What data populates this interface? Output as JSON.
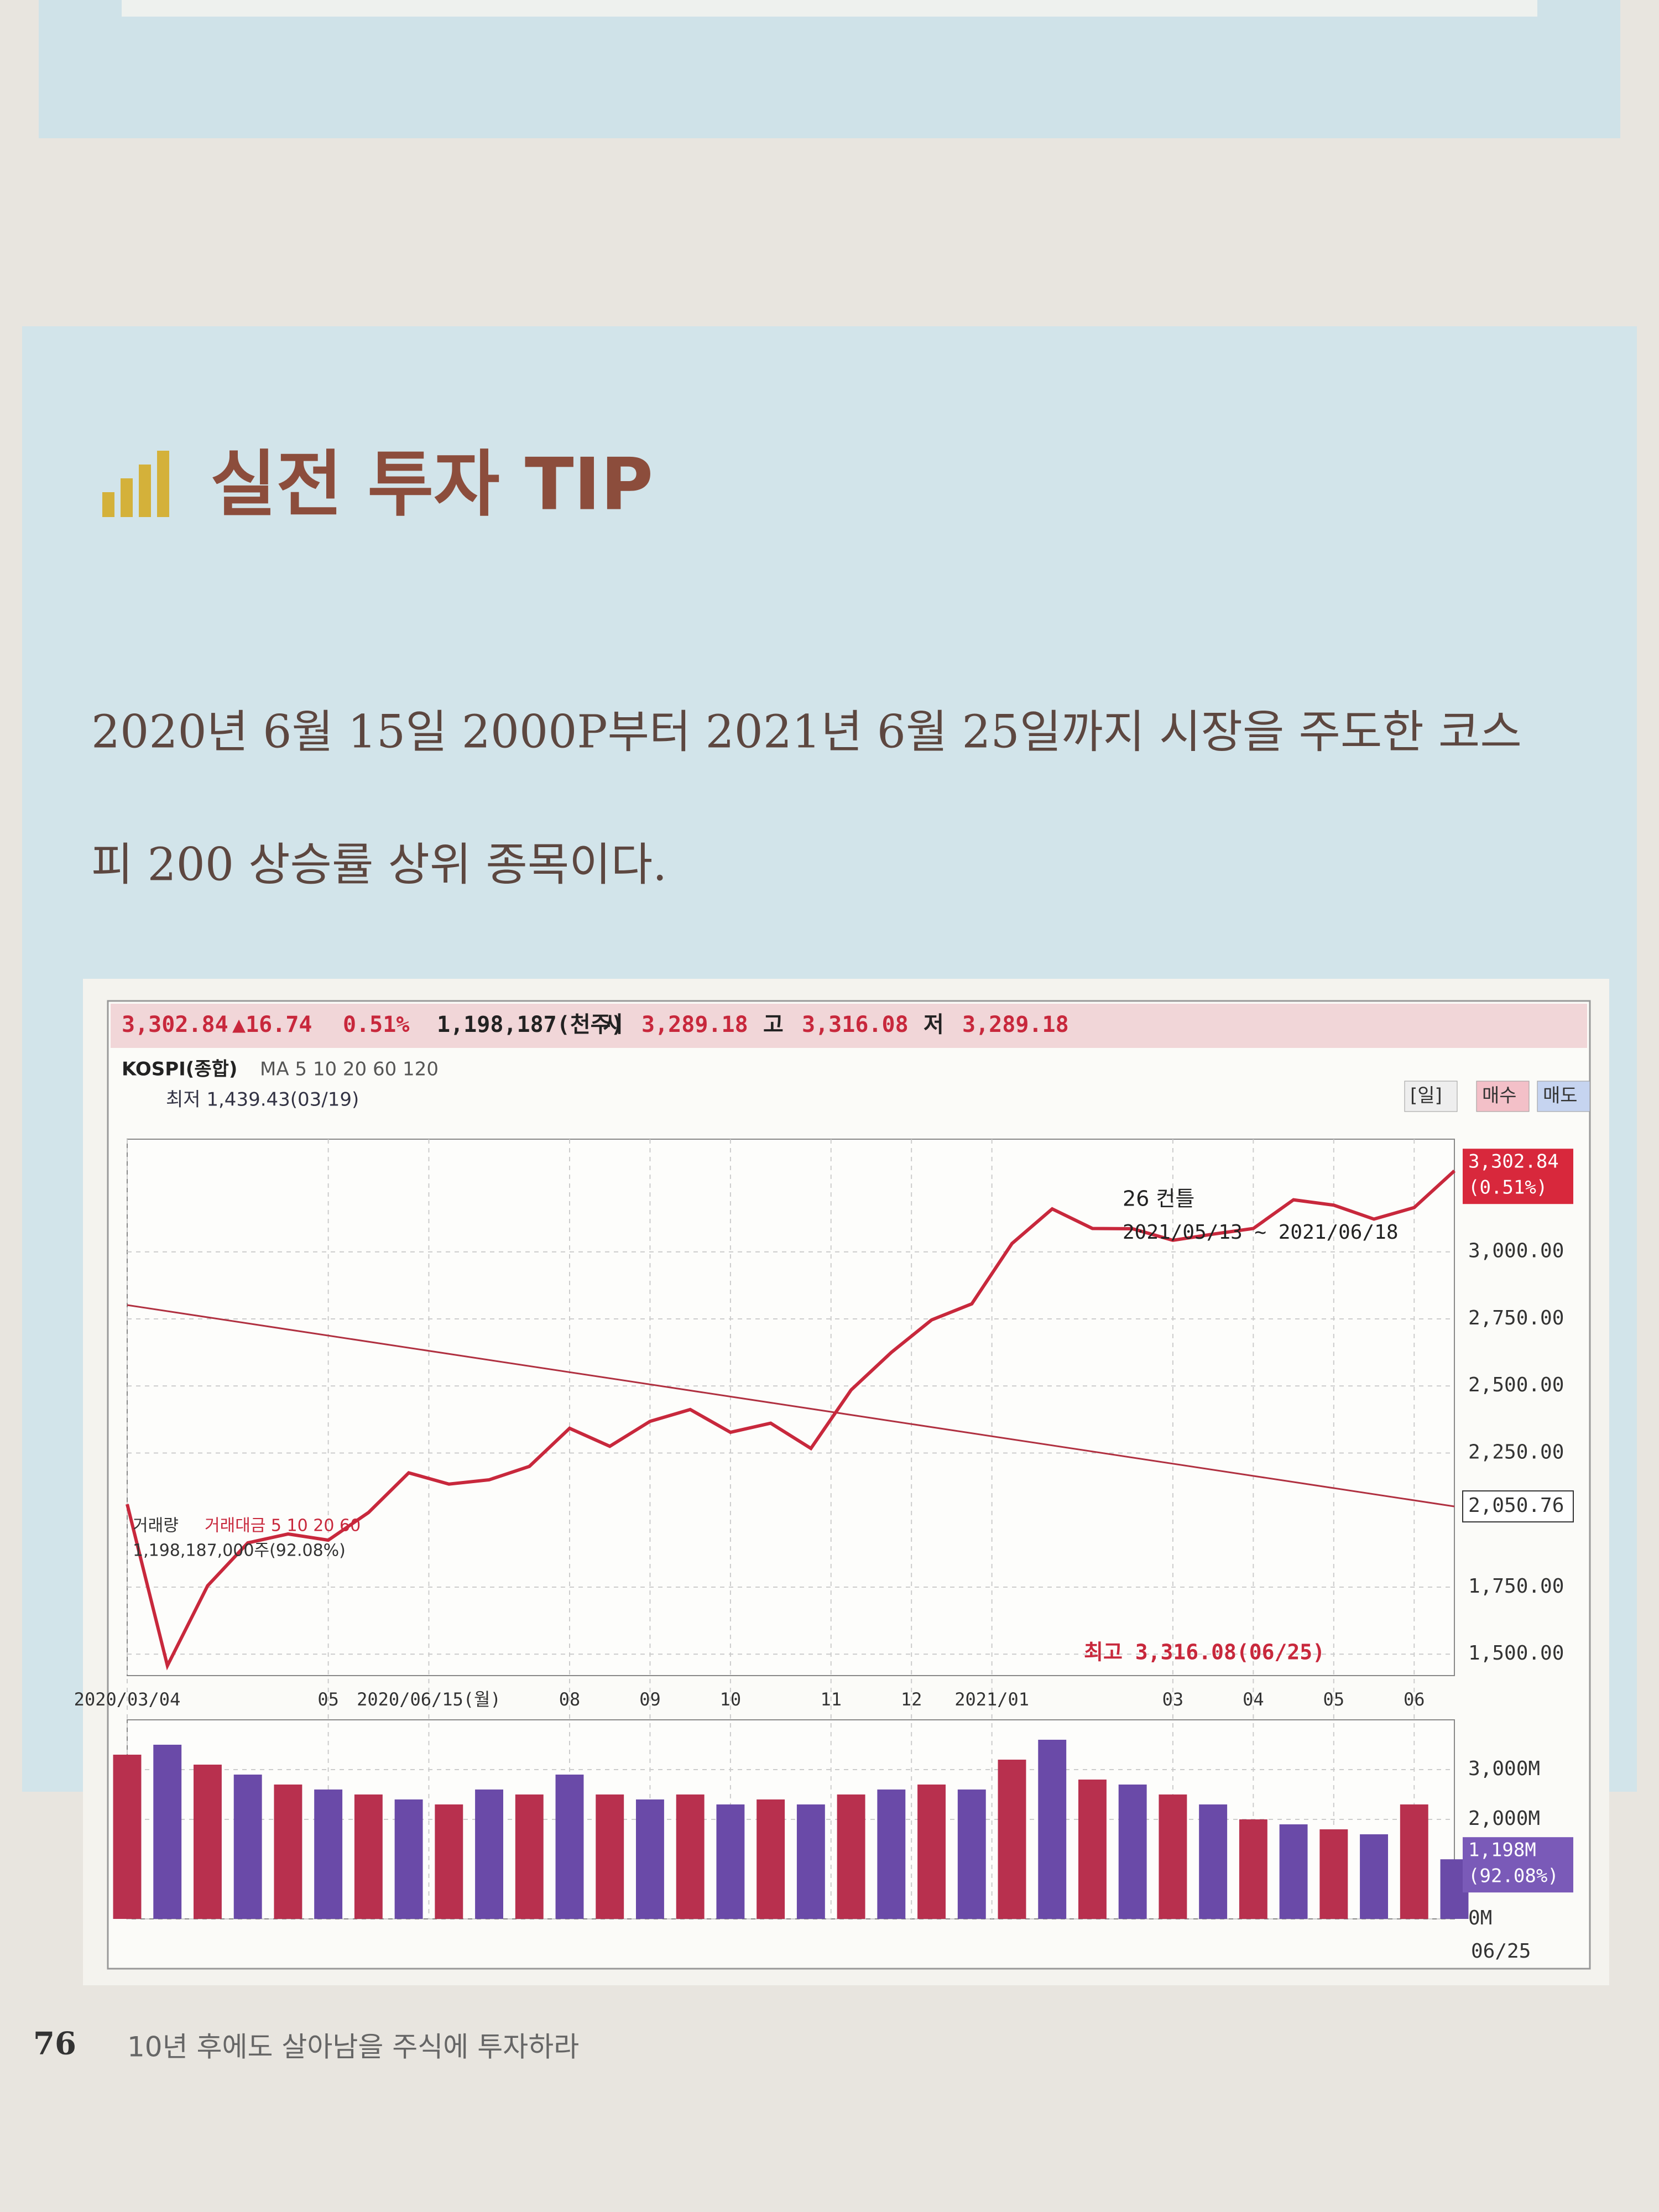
{
  "header": {
    "title": "실전 투자 TIP"
  },
  "body": {
    "paragraph": [
      "2020년 6월 15일 2000P부터 2021년 6월 25일까지 시장을 주도한 코스",
      "피 200 상승률 상위 종목이다."
    ]
  },
  "chart_data": {
    "type": "line",
    "quote_bar": [
      "3,302.84",
      "▲16.74",
      "0.51%",
      "1,198,187(천주)",
      "시",
      "3,289.18",
      "고",
      "3,316.08",
      "저",
      "3,289.18"
    ],
    "ma_legend": "MA 5 10 20 60 120",
    "low_label": "최저 1,439.43(03/19)",
    "buttons": [
      "[일]",
      "매수",
      "매도"
    ],
    "annotations": [
      "26 컨틀",
      "2021/05/13 ~ 2021/06/18",
      "최고 3,316.08(06/25)"
    ],
    "price_tag": [
      "3,302.84",
      "(0.51%)"
    ],
    "ref_line": {
      "value": 2050.76,
      "label": "2,050.76"
    },
    "volume_legend": [
      "거래대금 5 10 20 60",
      "1,198,187,000주(92.08%)"
    ],
    "volume_tag": [
      "1,198M",
      "(92.08%)"
    ],
    "last_date": "06/25",
    "grid": true,
    "xlim": [
      0,
      33
    ],
    "xticks": [
      {
        "value": 0,
        "label": "2020/03/04"
      },
      {
        "value": 5,
        "label": "05"
      },
      {
        "value": 7.5,
        "label": "2020/06/15(월)"
      },
      {
        "value": 11,
        "label": "08"
      },
      {
        "value": 13,
        "label": "09"
      },
      {
        "value": 15,
        "label": "10"
      },
      {
        "value": 17.5,
        "label": "11"
      },
      {
        "value": 19.5,
        "label": "12"
      },
      {
        "value": 21.5,
        "label": "2021/01"
      },
      {
        "value": 26,
        "label": "03"
      },
      {
        "value": 28,
        "label": "04"
      },
      {
        "value": 30,
        "label": "05"
      },
      {
        "value": 32,
        "label": "06"
      }
    ],
    "ylim": [
      1420,
      3420
    ],
    "yticks": [
      {
        "value": 1500,
        "label": "1,500.00"
      },
      {
        "value": 1750,
        "label": "1,750.00"
      },
      {
        "value": 2250,
        "label": "2,250.00"
      },
      {
        "value": 2500,
        "label": "2,500.00"
      },
      {
        "value": 2750,
        "label": "2,750.00"
      },
      {
        "value": 3000,
        "label": "3,000.00"
      }
    ],
    "y2lim": [
      0,
      4000
    ],
    "y2ticks": [
      {
        "value": 0,
        "label": "0M"
      },
      {
        "value": 2000,
        "label": "2,000M"
      },
      {
        "value": 3000,
        "label": "3,000M"
      }
    ],
    "series": [
      {
        "name": "KOSPI(종합)",
        "color": "#c8283c",
        "values": [
          2059,
          1457,
          1755,
          1915,
          1948,
          1925,
          2028,
          2176,
          2134,
          2150,
          2200,
          2342,
          2275,
          2368,
          2412,
          2327,
          2361,
          2267,
          2485,
          2625,
          2746,
          2806,
          3031,
          3160,
          3087,
          3086,
          3043,
          3066,
          3087,
          3194,
          3174,
          3122,
          3165,
          3302
        ]
      },
      {
        "name": "거래량",
        "color": "#b8304e",
        "axis": "y2",
        "values": [
          3300,
          3500,
          3100,
          2900,
          2700,
          2600,
          2500,
          2400,
          2300,
          2600,
          2500,
          2900,
          2500,
          2400,
          2500,
          2300,
          2400,
          2300,
          2500,
          2600,
          2700,
          2600,
          3200,
          3600,
          2800,
          2700,
          2500,
          2300,
          2000,
          1900,
          1800,
          1700,
          2300,
          1198
        ]
      }
    ]
  },
  "footer": {
    "page_number": "76",
    "text": "10년 후에도 살아남을 주식에 투자하라"
  }
}
